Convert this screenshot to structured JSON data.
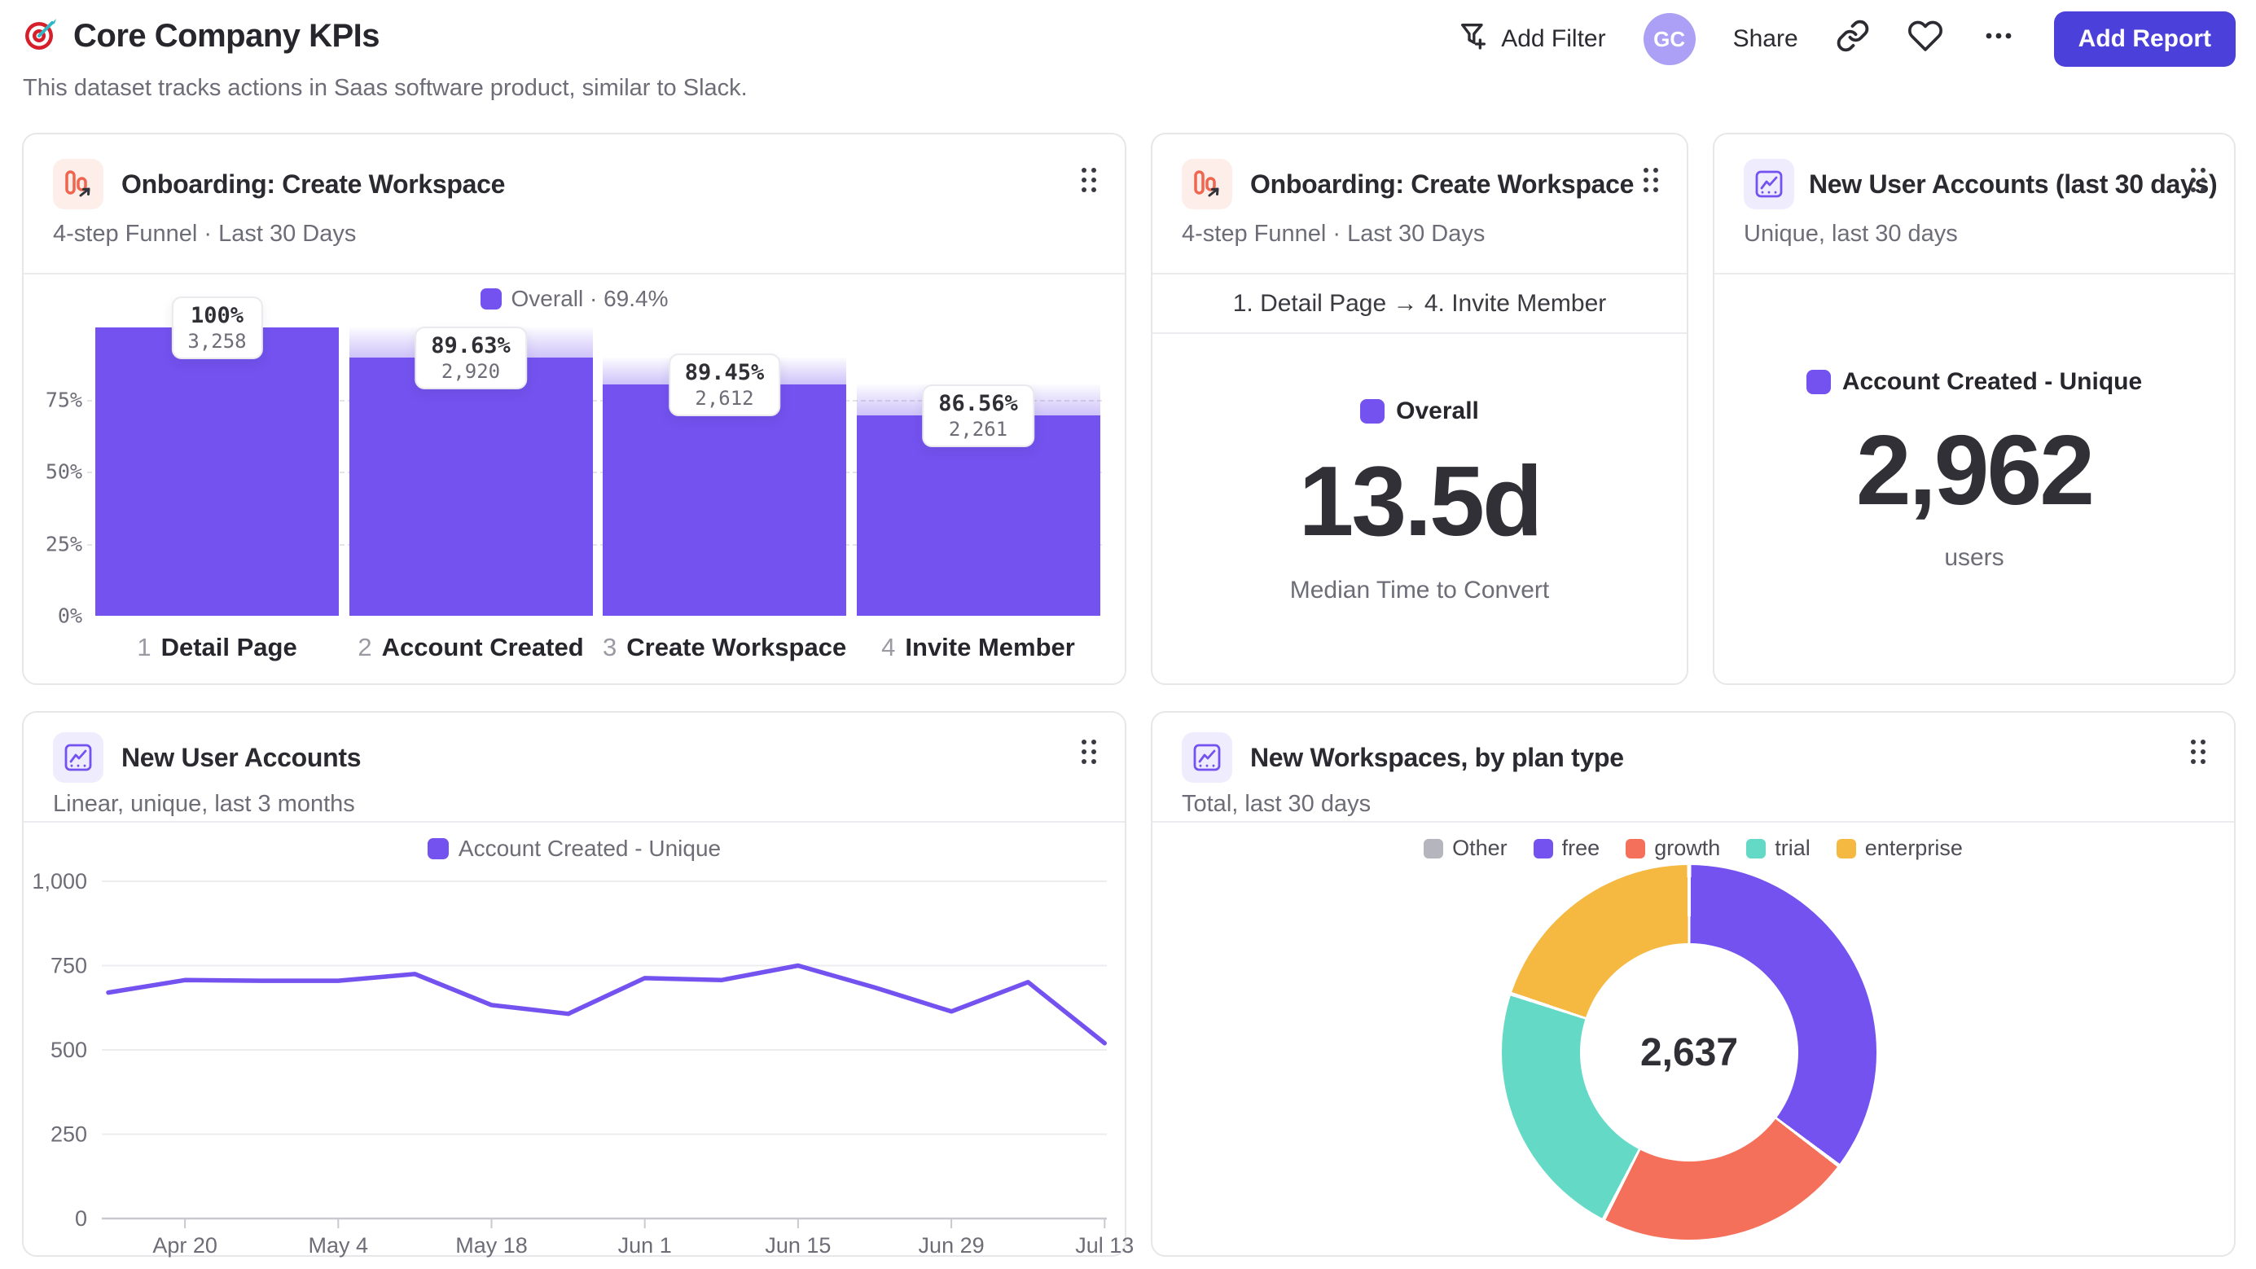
{
  "header": {
    "title": "Core Company KPIs",
    "subtitle": "This dataset tracks actions in Saas software product, similar to Slack.",
    "add_filter_label": "Add Filter",
    "avatar_initials": "GC",
    "share_label": "Share",
    "add_report_label": "Add Report",
    "icons": {
      "title": "dartboard",
      "add_filter": "funnel-plus",
      "link": "chain-link",
      "favorite": "heart",
      "more": "ellipsis"
    }
  },
  "colors": {
    "accent": "#7352ef",
    "button": "#4b40d9",
    "coral": "#f5705a",
    "teal": "#63d9c6",
    "yellow": "#f5b840",
    "gray_slice": "#b5b5bd",
    "avatar_bg": "#aca0f6",
    "funnel_icon_orange": "#f0654e"
  },
  "cards": {
    "funnel": {
      "title": "Onboarding: Create Workspace",
      "subtitle": "4-step Funnel · Last 30 Days",
      "legend": "Overall · 69.4%"
    },
    "ttc": {
      "title": "Onboarding: Create Workspace",
      "subtitle": "4-step Funnel · Last 30 Days",
      "range": "1. Detail Page → 4. Invite Member",
      "legend": "Overall",
      "value": "13.5d",
      "caption": "Median Time to Convert"
    },
    "nua30": {
      "title": "New User Accounts (last 30 days)",
      "subtitle": "Unique, last 30 days",
      "legend": "Account Created - Unique",
      "value": "2,962",
      "caption": "users"
    },
    "nualine": {
      "title": "New User Accounts",
      "subtitle": "Linear, unique, last 3 months",
      "legend": "Account Created - Unique"
    },
    "wsdonut": {
      "title": "New Workspaces, by plan type",
      "subtitle": "Total, last 30 days",
      "center_value": "2,637"
    }
  },
  "chart_data": [
    {
      "type": "bar",
      "subtype": "funnel",
      "title": "Onboarding: Create Workspace",
      "overall_conversion": "69.4%",
      "y_ticks": [
        "75%",
        "50%",
        "25%",
        "0%"
      ],
      "y_tick_pcts": [
        75,
        50,
        25,
        0
      ],
      "steps": [
        {
          "num": "1",
          "label": "Detail Page",
          "value": 3258,
          "value_label": "3,258",
          "step_conversion": "100%",
          "overall_pct": 100
        },
        {
          "num": "2",
          "label": "Account Created",
          "value": 2920,
          "value_label": "2,920",
          "step_conversion": "89.63%",
          "overall_pct": 89.63
        },
        {
          "num": "3",
          "label": "Create Workspace",
          "value": 2612,
          "value_label": "2,612",
          "step_conversion": "89.45%",
          "overall_pct": 80.17
        },
        {
          "num": "4",
          "label": "Invite Member",
          "value": 2261,
          "value_label": "2,261",
          "step_conversion": "86.56%",
          "overall_pct": 69.4
        }
      ]
    },
    {
      "type": "line",
      "title": "New User Accounts",
      "series": [
        {
          "name": "Account Created - Unique",
          "values": [
            670,
            707,
            705,
            705,
            725,
            633,
            607,
            713,
            707,
            750,
            685,
            614,
            701,
            520
          ]
        }
      ],
      "x_tick_labels": [
        "Apr 20",
        "May 4",
        "May 18",
        "Jun 1",
        "Jun 15",
        "Jun 29",
        "Jul 13"
      ],
      "x_tick_indices": [
        1,
        3,
        5,
        7,
        9,
        11,
        13
      ],
      "y_ticks": [
        0,
        250,
        500,
        750,
        1000
      ],
      "y_tick_labels": [
        "0",
        "250",
        "500",
        "750",
        "1,000"
      ],
      "ylim": [
        0,
        1000
      ],
      "grid": true,
      "legend_position": "top-center"
    },
    {
      "type": "pie",
      "subtype": "donut",
      "title": "New Workspaces, by plan type",
      "total": 2637,
      "center_label": "2,637",
      "slices": [
        {
          "label": "free",
          "value": 931,
          "color": "#7352ef"
        },
        {
          "label": "growth",
          "value": 586,
          "color": "#f5705a"
        },
        {
          "label": "trial",
          "value": 594,
          "color": "#63d9c6"
        },
        {
          "label": "enterprise",
          "value": 526,
          "color": "#f5b840"
        },
        {
          "label": "Other",
          "value": 0,
          "color": "#b5b5bd"
        }
      ],
      "legend": [
        {
          "label": "Other",
          "color": "#b5b5bd"
        },
        {
          "label": "free",
          "color": "#7352ef"
        },
        {
          "label": "growth",
          "color": "#f5705a"
        },
        {
          "label": "trial",
          "color": "#63d9c6"
        },
        {
          "label": "enterprise",
          "color": "#f5b840"
        }
      ],
      "legend_position": "top-center"
    }
  ]
}
